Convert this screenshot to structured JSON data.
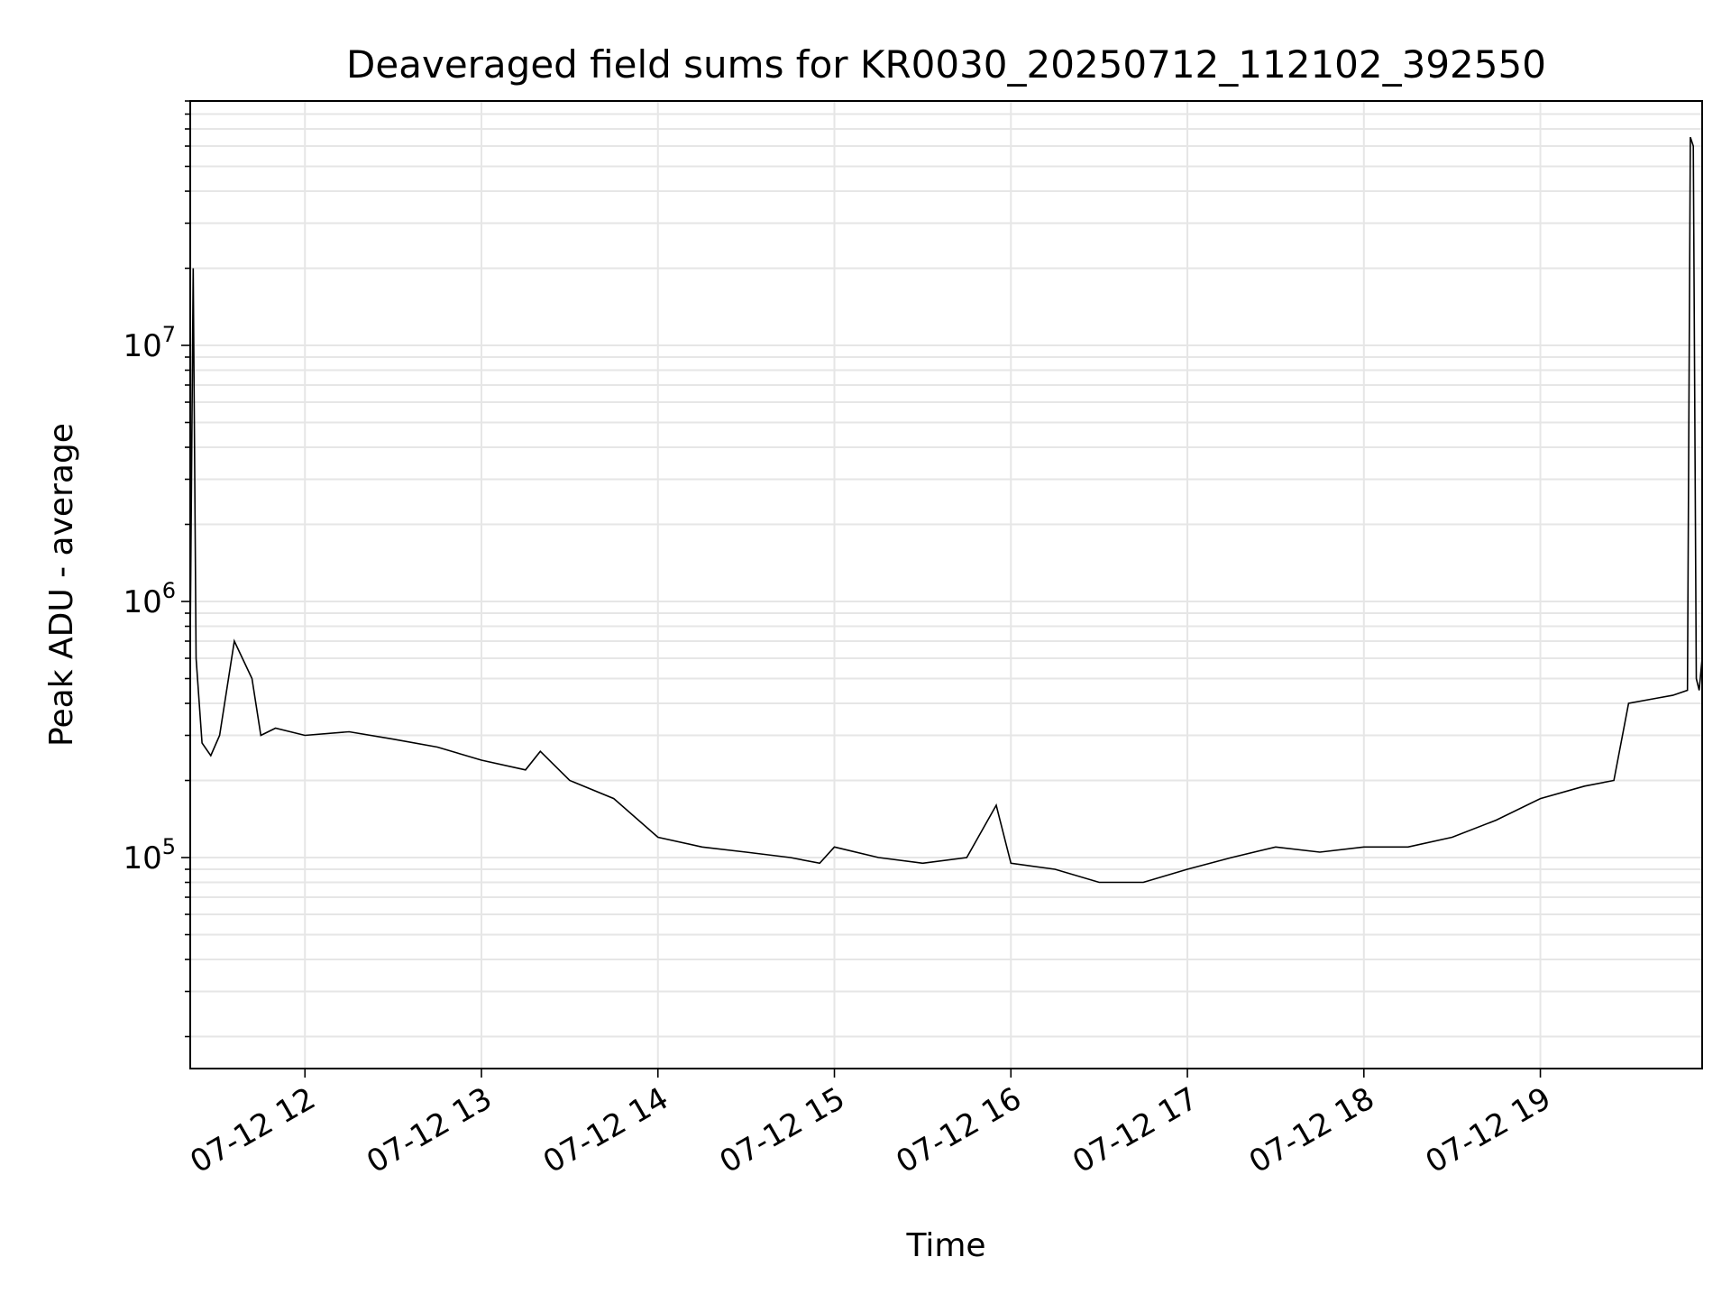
{
  "chart_data": {
    "type": "line",
    "title": "Deaveraged field sums for KR0030_20250712_112102_392550",
    "xlabel": "Time",
    "ylabel": "Peak ADU - average",
    "x_tick_labels": [
      "07-12 12",
      "07-12 13",
      "07-12 14",
      "07-12 15",
      "07-12 16",
      "07-12 17",
      "07-12 18",
      "07-12 19"
    ],
    "x_ticks": [
      "2025-07-12T12:00",
      "2025-07-12T13:00",
      "2025-07-12T14:00",
      "2025-07-12T15:00",
      "2025-07-12T16:00",
      "2025-07-12T17:00",
      "2025-07-12T18:00",
      "2025-07-12T19:00"
    ],
    "xlim": [
      "2025-07-12T11:21",
      "2025-07-12T19:55"
    ],
    "y_scale": "log",
    "ylim": [
      15000,
      90000000
    ],
    "y_tick_labels": [
      {
        "base": "10",
        "exp": "5",
        "value": 100000
      },
      {
        "base": "10",
        "exp": "6",
        "value": 1000000
      },
      {
        "base": "10",
        "exp": "7",
        "value": 10000000
      }
    ],
    "grid": true,
    "line_color": "#000000",
    "grid_color": "#e6e6e6",
    "series": [
      {
        "x": [
          "2025-07-12T11:21",
          "2025-07-12T11:22",
          "2025-07-12T11:23",
          "2025-07-12T11:25",
          "2025-07-12T11:28",
          "2025-07-12T11:31",
          "2025-07-12T11:36",
          "2025-07-12T11:42",
          "2025-07-12T11:45",
          "2025-07-12T11:50",
          "2025-07-12T12:00",
          "2025-07-12T12:15",
          "2025-07-12T12:30",
          "2025-07-12T12:45",
          "2025-07-12T13:00",
          "2025-07-12T13:15",
          "2025-07-12T13:20",
          "2025-07-12T13:30",
          "2025-07-12T13:45",
          "2025-07-12T14:00",
          "2025-07-12T14:15",
          "2025-07-12T14:30",
          "2025-07-12T14:45",
          "2025-07-12T14:55",
          "2025-07-12T15:00",
          "2025-07-12T15:15",
          "2025-07-12T15:30",
          "2025-07-12T15:45",
          "2025-07-12T15:55",
          "2025-07-12T16:00",
          "2025-07-12T16:15",
          "2025-07-12T16:30",
          "2025-07-12T16:45",
          "2025-07-12T17:00",
          "2025-07-12T17:15",
          "2025-07-12T17:30",
          "2025-07-12T17:45",
          "2025-07-12T18:00",
          "2025-07-12T18:15",
          "2025-07-12T18:30",
          "2025-07-12T18:45",
          "2025-07-12T19:00",
          "2025-07-12T19:15",
          "2025-07-12T19:25",
          "2025-07-12T19:30",
          "2025-07-12T19:40",
          "2025-07-12T19:45",
          "2025-07-12T19:50",
          "2025-07-12T19:51",
          "2025-07-12T19:52",
          "2025-07-12T19:53",
          "2025-07-12T19:54",
          "2025-07-12T19:55"
        ],
        "y": [
          700000,
          20000000,
          600000,
          280000,
          250000,
          300000,
          700000,
          500000,
          300000,
          320000,
          300000,
          310000,
          290000,
          270000,
          240000,
          220000,
          260000,
          200000,
          170000,
          120000,
          110000,
          105000,
          100000,
          95000,
          110000,
          100000,
          95000,
          100000,
          160000,
          95000,
          90000,
          80000,
          80000,
          90000,
          100000,
          110000,
          105000,
          110000,
          110000,
          120000,
          140000,
          170000,
          190000,
          200000,
          400000,
          420000,
          430000,
          450000,
          65000000,
          60000000,
          500000,
          450000,
          600000
        ]
      }
    ]
  }
}
